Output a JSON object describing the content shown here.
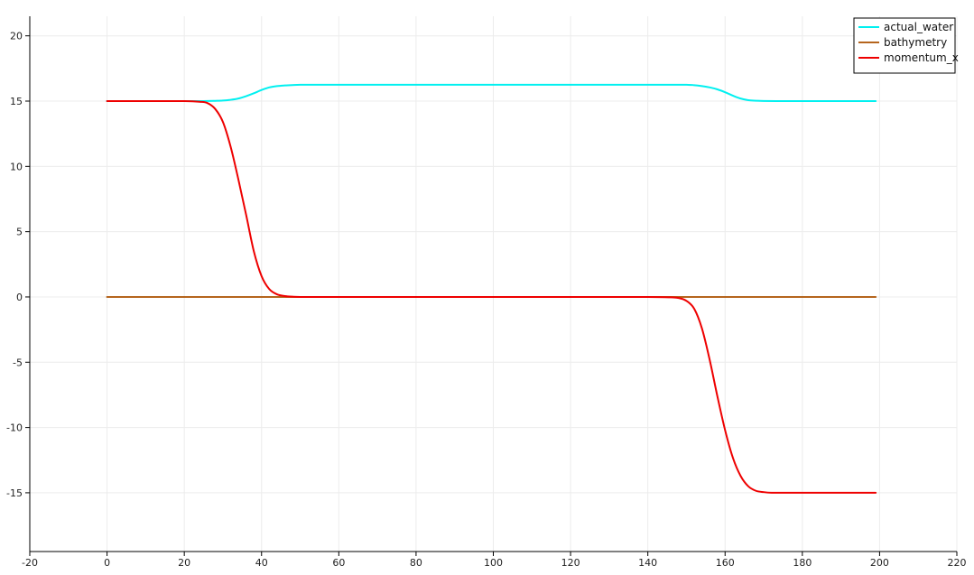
{
  "chart_data": {
    "type": "line",
    "title": "",
    "xlabel": "",
    "ylabel": "",
    "xlim": [
      -20,
      220
    ],
    "ylim": [
      -19.5,
      21.5
    ],
    "x_ticks": [
      -20,
      0,
      20,
      40,
      60,
      80,
      100,
      120,
      140,
      160,
      180,
      200,
      220
    ],
    "y_ticks": [
      -15,
      -10,
      -5,
      0,
      5,
      10,
      15,
      20
    ],
    "grid": true,
    "legend_position": "top-right",
    "series": [
      {
        "name": "actual_water",
        "color": "#00f0f0",
        "x": [
          0,
          10,
          20,
          25,
          28,
          30,
          32,
          34,
          36,
          38,
          40,
          42,
          44,
          46,
          48,
          50,
          55,
          60,
          80,
          100,
          120,
          140,
          150,
          152,
          154,
          156,
          158,
          160,
          162,
          164,
          166,
          168,
          170,
          175,
          180,
          190,
          199
        ],
        "y": [
          15.0,
          15.0,
          15.0,
          15.0,
          15.02,
          15.04,
          15.1,
          15.2,
          15.38,
          15.6,
          15.85,
          16.05,
          16.15,
          16.2,
          16.23,
          16.25,
          16.25,
          16.25,
          16.25,
          16.25,
          16.25,
          16.25,
          16.25,
          16.22,
          16.15,
          16.05,
          15.9,
          15.68,
          15.42,
          15.2,
          15.07,
          15.03,
          15.01,
          15.0,
          15.0,
          15.0,
          15.0
        ]
      },
      {
        "name": "bathymetry",
        "color": "#b5651d",
        "x": [
          0,
          199
        ],
        "y": [
          0.0,
          0.0
        ]
      },
      {
        "name": "momentum_x",
        "color": "#ee0000",
        "x": [
          0,
          10,
          20,
          24,
          26,
          28,
          30,
          32,
          34,
          36,
          38,
          40,
          42,
          44,
          46,
          48,
          50,
          55,
          60,
          80,
          100,
          120,
          140,
          146,
          148,
          150,
          152,
          154,
          156,
          158,
          160,
          162,
          164,
          166,
          168,
          170,
          172,
          175,
          180,
          190,
          199
        ],
        "y": [
          15.0,
          15.0,
          15.0,
          14.95,
          14.85,
          14.4,
          13.4,
          11.5,
          9.0,
          6.3,
          3.5,
          1.6,
          0.6,
          0.2,
          0.07,
          0.02,
          0.0,
          0.0,
          0.0,
          0.0,
          0.0,
          0.0,
          0.0,
          -0.03,
          -0.08,
          -0.3,
          -0.9,
          -2.4,
          -4.8,
          -7.6,
          -10.2,
          -12.3,
          -13.7,
          -14.5,
          -14.85,
          -14.95,
          -15.0,
          -15.0,
          -15.0,
          -15.0,
          -15.0
        ]
      }
    ]
  },
  "colors": {
    "grid": "#ececec",
    "axis": "#000000",
    "legend_border": "#000000",
    "background": "#ffffff"
  }
}
